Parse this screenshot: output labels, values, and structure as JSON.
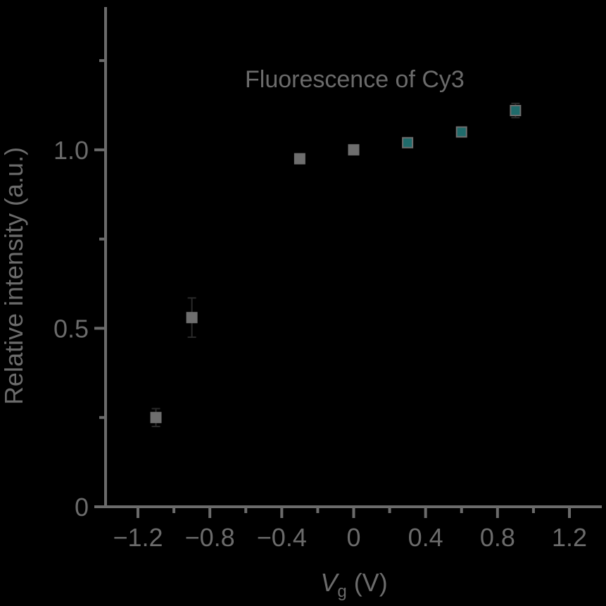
{
  "colors": {
    "background": "#000000",
    "axis": "#6b6b6b",
    "marker": "#6e6e6e",
    "marker_edge": "#1a1a1a",
    "highlight_fill": "#1f6b6b",
    "error_bar": "#2a2a2a"
  },
  "chart_data": {
    "type": "scatter",
    "title": "",
    "annotation": "Fluorescence of Cy3",
    "xlabel": {
      "symbol": "V",
      "subscript": "g",
      "unit": " (V)"
    },
    "ylabel": "Relative intensity (a.u.)",
    "xlim": [
      -1.38,
      1.38
    ],
    "ylim": [
      0,
      1.4
    ],
    "x_major_ticks": [
      -1.2,
      -0.8,
      -0.4,
      0,
      0.4,
      0.8,
      1.2
    ],
    "x_tick_labels": [
      "−1.2",
      "−0.8",
      "−0.4",
      "0",
      "0.4",
      "0.8",
      "1.2"
    ],
    "x_minor_ticks": [
      -1.0,
      -0.6,
      -0.2,
      0.2,
      0.6,
      1.0
    ],
    "y_major_ticks": [
      0,
      0.5,
      1.0
    ],
    "y_tick_labels": [
      "0",
      "0.5",
      "1.0"
    ],
    "y_minor_ticks": [
      0.25,
      0.75,
      1.25
    ],
    "grid": false,
    "legend": "none",
    "series": [
      {
        "points": [
          {
            "x": -1.1,
            "y": 0.25,
            "err": 0.025
          },
          {
            "x": -0.9,
            "y": 0.53,
            "err": 0.055
          },
          {
            "x": -0.3,
            "y": 0.975,
            "err": 0.005
          },
          {
            "x": 0.0,
            "y": 1.0,
            "err": 0.005
          },
          {
            "x": 0.3,
            "y": 1.02,
            "err": 0.01
          },
          {
            "x": 0.6,
            "y": 1.05,
            "err": 0.012
          },
          {
            "x": 0.9,
            "y": 1.11,
            "err": 0.02
          }
        ]
      }
    ]
  }
}
